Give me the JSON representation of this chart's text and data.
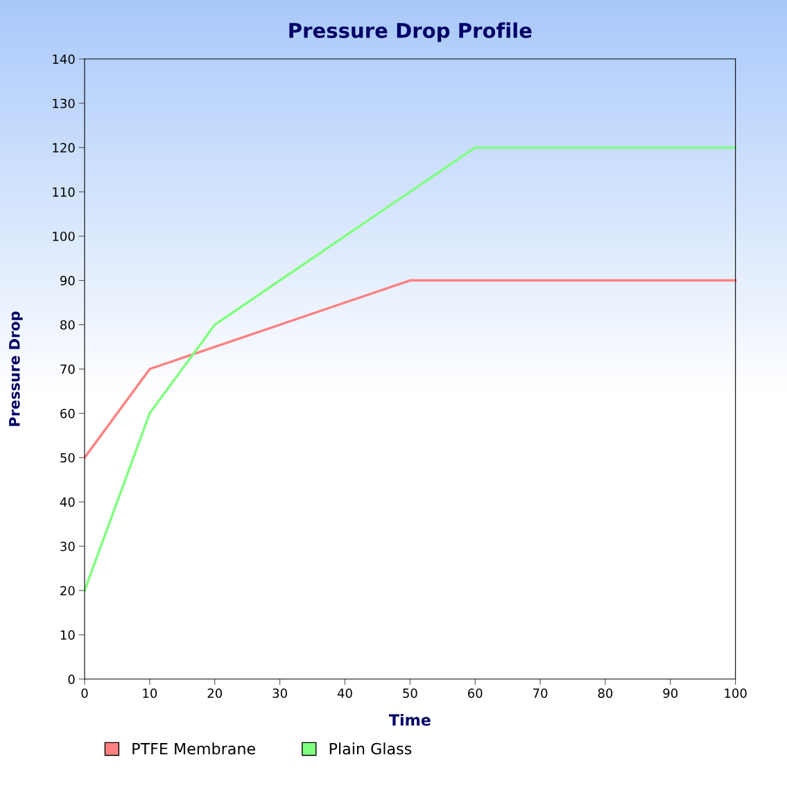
{
  "chart_data": {
    "type": "line",
    "title": "Pressure Drop Profile",
    "xlabel": "Time",
    "ylabel": "Pressure Drop",
    "series": [
      {
        "name": "PTFE Membrane",
        "color": "#ff8080",
        "x": [
          0,
          10,
          50,
          100
        ],
        "values": [
          50,
          70,
          90,
          90
        ]
      },
      {
        "name": "Plain Glass",
        "color": "#80ff80",
        "x": [
          0,
          10,
          20,
          60,
          100
        ],
        "values": [
          20,
          60,
          80,
          120,
          120
        ]
      }
    ],
    "xlim": [
      0,
      100
    ],
    "xticks": [
      0,
      10,
      20,
      30,
      40,
      50,
      60,
      70,
      80,
      90,
      100
    ],
    "ylim": [
      0,
      140
    ],
    "yticks": [
      0,
      10,
      20,
      30,
      40,
      50,
      60,
      70,
      80,
      90,
      100,
      110,
      120,
      130,
      140
    ],
    "grid": false,
    "legend": "bottom left",
    "marker": "none",
    "line_style": "solid"
  }
}
